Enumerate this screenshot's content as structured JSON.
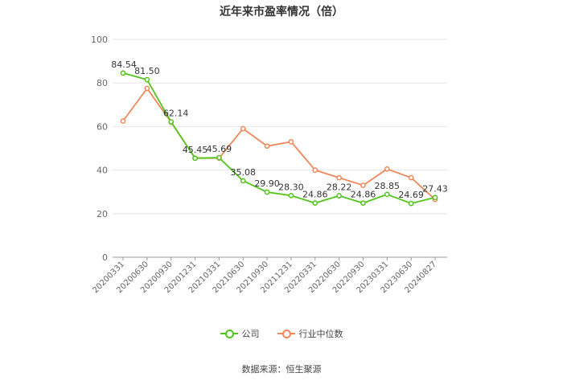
{
  "chart_data": {
    "type": "line",
    "title": "近年来市盈率情况（倍）",
    "categories": [
      "20200331",
      "20200630",
      "20200930",
      "20201231",
      "20210331",
      "20210630",
      "20210930",
      "20211231",
      "20220331",
      "20220630",
      "20220930",
      "20230331",
      "20230630",
      "20240827"
    ],
    "ylim": [
      0,
      100
    ],
    "yticks": [
      0,
      20,
      40,
      60,
      80,
      100
    ],
    "grid": true,
    "legend_position": "bottom",
    "series": [
      {
        "name": "公司",
        "color": "#52c41a",
        "values": [
          84.54,
          81.5,
          62.14,
          45.45,
          45.69,
          35.08,
          29.9,
          28.3,
          24.86,
          28.22,
          24.86,
          28.85,
          24.69,
          27.43
        ],
        "labels": [
          "84.54",
          "81.50",
          "62.14",
          "45.45",
          "45.69",
          "35.08",
          "29.90",
          "28.30",
          "24.86",
          "28.22",
          "24.86",
          "28.85",
          "24.69",
          "27.43"
        ]
      },
      {
        "name": "行业中位数",
        "color": "#f0875a",
        "values": [
          62.5,
          77.5,
          62.0,
          45.5,
          45.5,
          59.0,
          51.0,
          53.0,
          40.0,
          36.5,
          33.0,
          40.5,
          36.5,
          26.5
        ]
      }
    ],
    "source": "数据来源：恒生聚源"
  }
}
